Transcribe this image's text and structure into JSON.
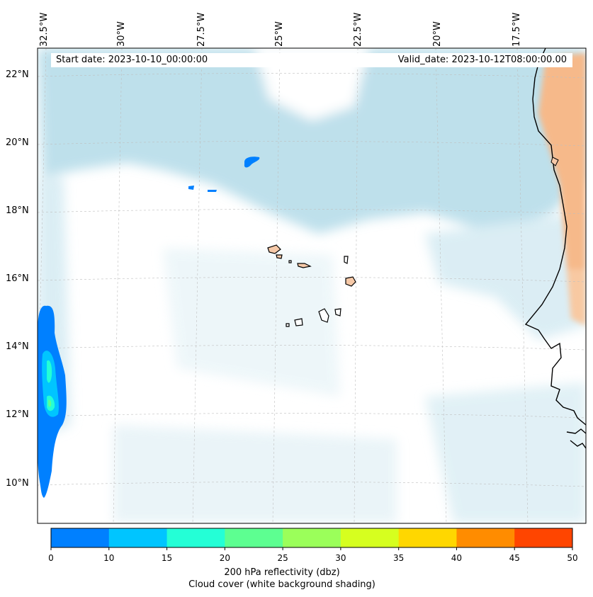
{
  "header": {
    "start_date": "Start date: 2023-10-10_00:00:00",
    "valid_date": "Valid_date: 2023-10-12T08:00:00.00"
  },
  "map": {
    "longitude_labels": [
      "32.5°W",
      "30°W",
      "27.5°W",
      "25°W",
      "22.5°W",
      "20°W",
      "17.5°W"
    ],
    "latitude_labels": [
      "22°N",
      "20°N",
      "18°N",
      "16°N",
      "14°N",
      "12°N",
      "10°N"
    ],
    "colors": {
      "reflectivity_low": "#0080ff",
      "reflectivity_mid": "#00c5ff",
      "cloud_shading": "#a9d6e5",
      "land_warm": "#f6b98a",
      "coastline": "#000000",
      "gridline": "#bfbfbf"
    }
  },
  "colorbar": {
    "ticks": [
      "0",
      "10",
      "15",
      "20",
      "25",
      "30",
      "35",
      "40",
      "45",
      "50"
    ],
    "colors": [
      "#0080ff",
      "#00c5ff",
      "#24ffd6",
      "#5dff91",
      "#9bff5a",
      "#d6ff1f",
      "#ffd700",
      "#ff8c00",
      "#ff4500"
    ],
    "label_line1": "200 hPa reflectivity (dbz)",
    "label_line2": "Cloud cover (white background shading)"
  }
}
